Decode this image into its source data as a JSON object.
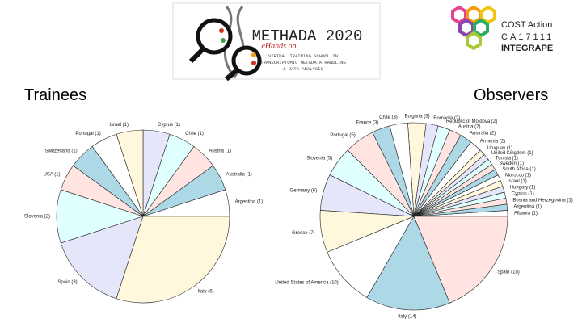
{
  "header": {
    "logo_title": "METHADA 2020",
    "logo_subtitle": "eHands on",
    "logo_line1": "VIRTUAL TRAINING SCHOOL IN",
    "logo_line2": "TRANSCRIPTOMIC METADATA HANDLING",
    "logo_line3": "& DATA ANALYSIS",
    "cost_line1": "COST Action",
    "cost_line2": "CA17111",
    "cost_line3": "INTEGRAPE"
  },
  "chart_data": [
    {
      "type": "pie",
      "title": "Trainees",
      "categories": [
        "Argentina (1)",
        "Australia (1)",
        "Austria (1)",
        "Chile (1)",
        "Cyprus (1)",
        "Israel (1)",
        "Portugal (1)",
        "Switzerland (1)",
        "USA (1)",
        "Slovenia (2)",
        "Spain (3)",
        "Italy (6)"
      ],
      "values": [
        1,
        1,
        1,
        1,
        1,
        1,
        1,
        1,
        1,
        2,
        3,
        6
      ],
      "colors": [
        "#ffffff",
        "#add8e6",
        "#ffe4e1",
        "#e0ffff",
        "#e6e6fa",
        "#fff8dc",
        "#ffffff",
        "#add8e6",
        "#ffe4e1",
        "#e0ffff",
        "#e6e6fa",
        "#fff8dc"
      ]
    },
    {
      "type": "pie",
      "title": "Observers",
      "categories": [
        "Albania (1)",
        "Argentina (1)",
        "Bosnia and Herzegovina (1)",
        "Cyprus (1)",
        "Hungary (1)",
        "Israel (1)",
        "Morocco (1)",
        "South Africa (1)",
        "Sweden (1)",
        "Tunisia (1)",
        "United Kingdom (1)",
        "Uruguay (1)",
        "Armenia (2)",
        "Australia (2)",
        "Austria (2)",
        "Republic of Moldova (2)",
        "Romania (2)",
        "Bulgaria (3)",
        "Chile (3)",
        "France (3)",
        "Portugal (5)",
        "Slovenia (5)",
        "Germany (6)",
        "Greece (7)",
        "United States of America (10)",
        "Italy (14)",
        "Spain (18)"
      ],
      "values": [
        1,
        1,
        1,
        1,
        1,
        1,
        1,
        1,
        1,
        1,
        1,
        1,
        2,
        2,
        2,
        2,
        2,
        3,
        3,
        3,
        5,
        5,
        6,
        7,
        10,
        14,
        18
      ],
      "colors": [
        "#ffffff",
        "#add8e6",
        "#ffe4e1",
        "#e0ffff",
        "#e6e6fa",
        "#fff8dc",
        "#ffffff",
        "#add8e6",
        "#ffe4e1",
        "#e0ffff",
        "#e6e6fa",
        "#fff8dc",
        "#ffffff",
        "#add8e6",
        "#ffe4e1",
        "#e0ffff",
        "#e6e6fa",
        "#fff8dc",
        "#ffffff",
        "#add8e6",
        "#ffe4e1",
        "#e0ffff",
        "#e6e6fa",
        "#fff8dc",
        "#ffffff",
        "#add8e6",
        "#ffe4e1"
      ]
    }
  ]
}
